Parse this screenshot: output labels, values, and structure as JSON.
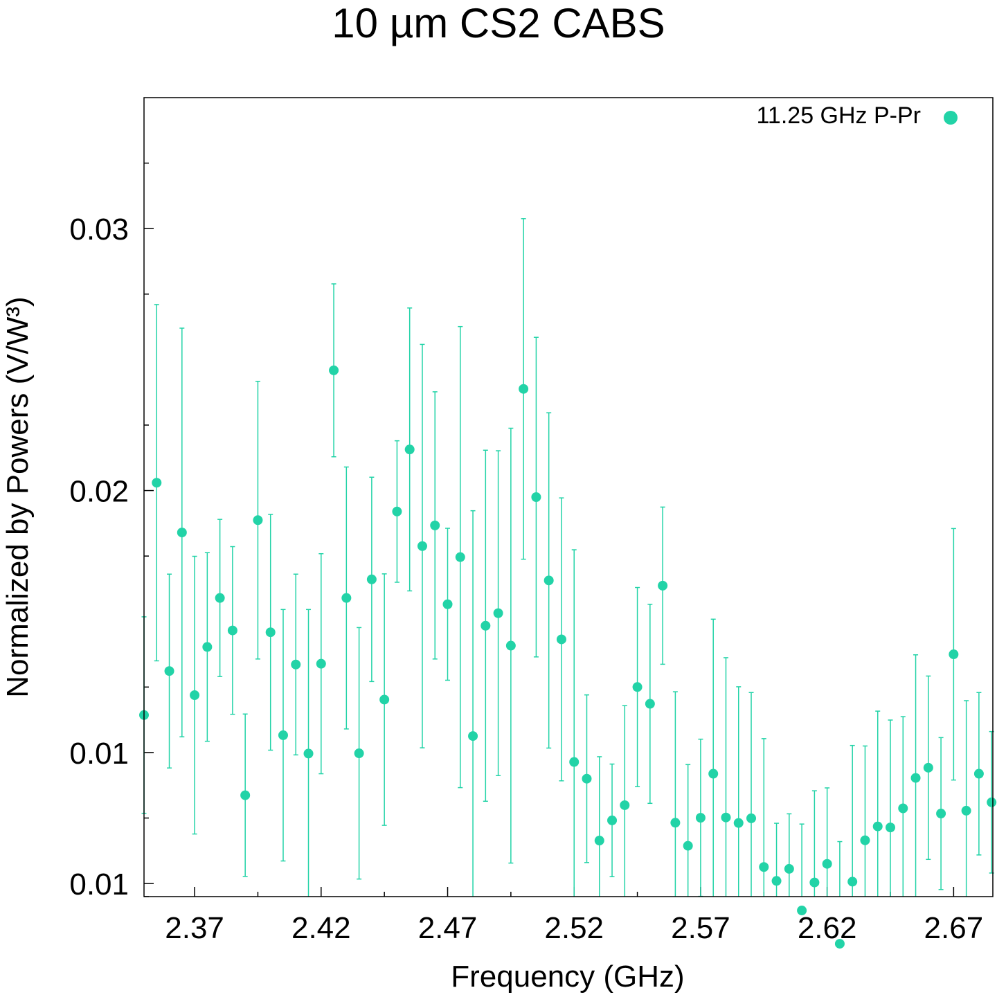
{
  "chart_data": {
    "type": "scatter",
    "title": "10 µm CS2 CABS",
    "xlabel": "Frequency (GHz)",
    "ylabel": "Normalized by Powers (V/W³)",
    "xlim": [
      2.35,
      2.6855
    ],
    "ylim": [
      0.0045,
      0.035
    ],
    "x_ticks": [
      {
        "value": 2.37,
        "label": "2.37"
      },
      {
        "value": 2.42,
        "label": "2.42"
      },
      {
        "value": 2.47,
        "label": "2.47"
      },
      {
        "value": 2.52,
        "label": "2.52"
      },
      {
        "value": 2.57,
        "label": "2.57"
      },
      {
        "value": 2.62,
        "label": "2.62"
      },
      {
        "value": 2.67,
        "label": "2.67"
      }
    ],
    "x_minor_ticks": [
      2.395,
      2.445,
      2.495,
      2.545,
      2.595,
      2.645
    ],
    "y_ticks": [
      {
        "value": 0.01,
        "label": "0.01"
      },
      {
        "value": 0.02,
        "label": "0.02"
      },
      {
        "value": 0.03,
        "label": "0.03"
      },
      {
        "value": 0.005,
        "label": "0.01"
      }
    ],
    "y_minor_ticks": [
      0.0045,
      0.0075,
      0.0125,
      0.0175,
      0.0225,
      0.0275,
      0.0325
    ],
    "grid": false,
    "legend_position": "top-right",
    "marker_color": "#22d3a7",
    "series": [
      {
        "name": "11.25 GHz P-Pr",
        "x": [
          2.35,
          2.355,
          2.36,
          2.365,
          2.37,
          2.375,
          2.38,
          2.385,
          2.39,
          2.395,
          2.4,
          2.405,
          2.41,
          2.415,
          2.42,
          2.425,
          2.43,
          2.435,
          2.44,
          2.445,
          2.45,
          2.455,
          2.46,
          2.465,
          2.47,
          2.475,
          2.48,
          2.485,
          2.49,
          2.495,
          2.5,
          2.505,
          2.51,
          2.515,
          2.52,
          2.525,
          2.53,
          2.535,
          2.54,
          2.545,
          2.55,
          2.555,
          2.56,
          2.565,
          2.57,
          2.575,
          2.58,
          2.585,
          2.59,
          2.595,
          2.6,
          2.605,
          2.61,
          2.615,
          2.62,
          2.625,
          2.63,
          2.635,
          2.64,
          2.645,
          2.65,
          2.655,
          2.66,
          2.665,
          2.67,
          2.675,
          2.68,
          2.685
        ],
        "y": [
          0.01143,
          0.0203,
          0.01311,
          0.0184,
          0.01219,
          0.01403,
          0.0159,
          0.01466,
          0.00837,
          0.01887,
          0.01459,
          0.01066,
          0.01336,
          0.00996,
          0.01339,
          0.02459,
          0.0159,
          0.00997,
          0.01661,
          0.01202,
          0.0192,
          0.02157,
          0.01788,
          0.01867,
          0.01566,
          0.01746,
          0.01063,
          0.01484,
          0.01532,
          0.01408,
          0.02388,
          0.01975,
          0.01657,
          0.01432,
          0.00964,
          0.009,
          0.00664,
          0.00741,
          0.00799,
          0.0125,
          0.01186,
          0.01637,
          0.00732,
          0.00644,
          0.00751,
          0.00919,
          0.00752,
          0.00731,
          0.00749,
          0.00563,
          0.0051,
          0.00556,
          0.00397,
          0.00504,
          0.00575,
          0.0027,
          0.00507,
          0.00665,
          0.00718,
          0.00714,
          0.00787,
          0.00903,
          0.00942,
          0.00767,
          0.01375,
          0.00778,
          0.00919,
          0.0081
        ],
        "err": [
          0.00375,
          0.0068,
          0.0037,
          0.0078,
          0.0053,
          0.0036,
          0.003,
          0.0032,
          0.0031,
          0.0053,
          0.0045,
          0.0048,
          0.00345,
          0.0055,
          0.0042,
          0.0033,
          0.005,
          0.0048,
          0.0039,
          0.0048,
          0.0027,
          0.0054,
          0.0077,
          0.0051,
          0.0029,
          0.0088,
          0.0086,
          0.0067,
          0.0062,
          0.0083,
          0.0065,
          0.0061,
          0.0064,
          0.0054,
          0.0081,
          0.0032,
          0.0032,
          0.00215,
          0.0038,
          0.0038,
          0.0038,
          0.003,
          0.005,
          0.0031,
          0.003,
          0.0059,
          0.0061,
          0.0052,
          0.0048,
          0.0049,
          0.0022,
          0.0021,
          0.0033,
          0.0035,
          0.0029,
          0.0039,
          0.0052,
          0.0036,
          0.0044,
          0.0041,
          0.0035,
          0.0047,
          0.0035,
          0.0029,
          0.0048,
          0.0042,
          0.0031,
          0.0027
        ]
      }
    ]
  }
}
